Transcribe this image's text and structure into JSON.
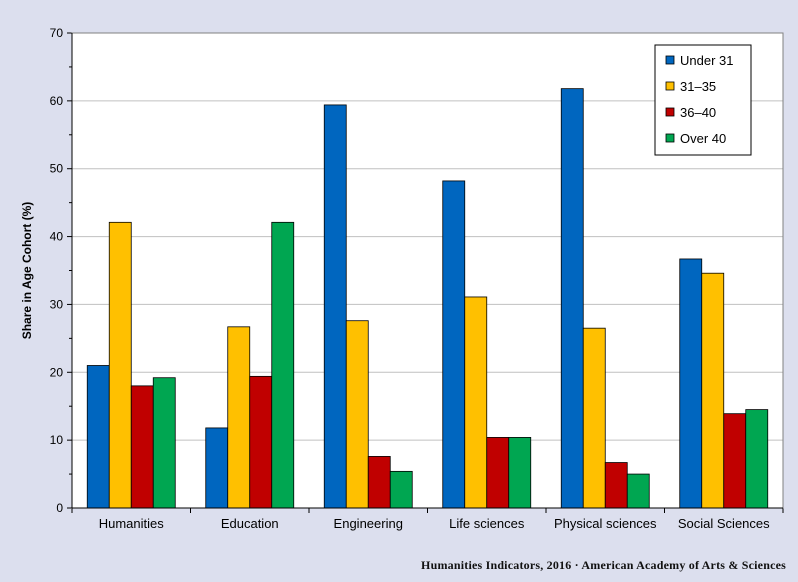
{
  "footer": "Humanities  Indicators, 2016 · American Academy of Arts & Sciences",
  "chart_data": {
    "type": "bar",
    "title": "",
    "xlabel": "",
    "ylabel": "Share in Age Cohort (%)",
    "ylim": [
      0,
      70
    ],
    "yticks": [
      0,
      10,
      20,
      30,
      40,
      50,
      60,
      70
    ],
    "grid": true,
    "legend_position": "top-right",
    "categories": [
      "Humanities",
      "Education",
      "Engineering",
      "Life sciences",
      "Physical sciences",
      "Social Sciences"
    ],
    "series": [
      {
        "name": "Under 31",
        "color": "#0066bf",
        "values": [
          21.0,
          11.8,
          59.4,
          48.2,
          61.8,
          36.7
        ]
      },
      {
        "name": "31–35",
        "color": "#ffc000",
        "values": [
          42.1,
          26.7,
          27.6,
          31.1,
          26.5,
          34.6
        ]
      },
      {
        "name": "36–40",
        "color": "#c00000",
        "values": [
          18.0,
          19.4,
          7.6,
          10.4,
          6.7,
          13.9
        ]
      },
      {
        "name": "Over 40",
        "color": "#00a651",
        "values": [
          19.2,
          42.1,
          5.4,
          10.4,
          5.0,
          14.5
        ]
      }
    ]
  }
}
